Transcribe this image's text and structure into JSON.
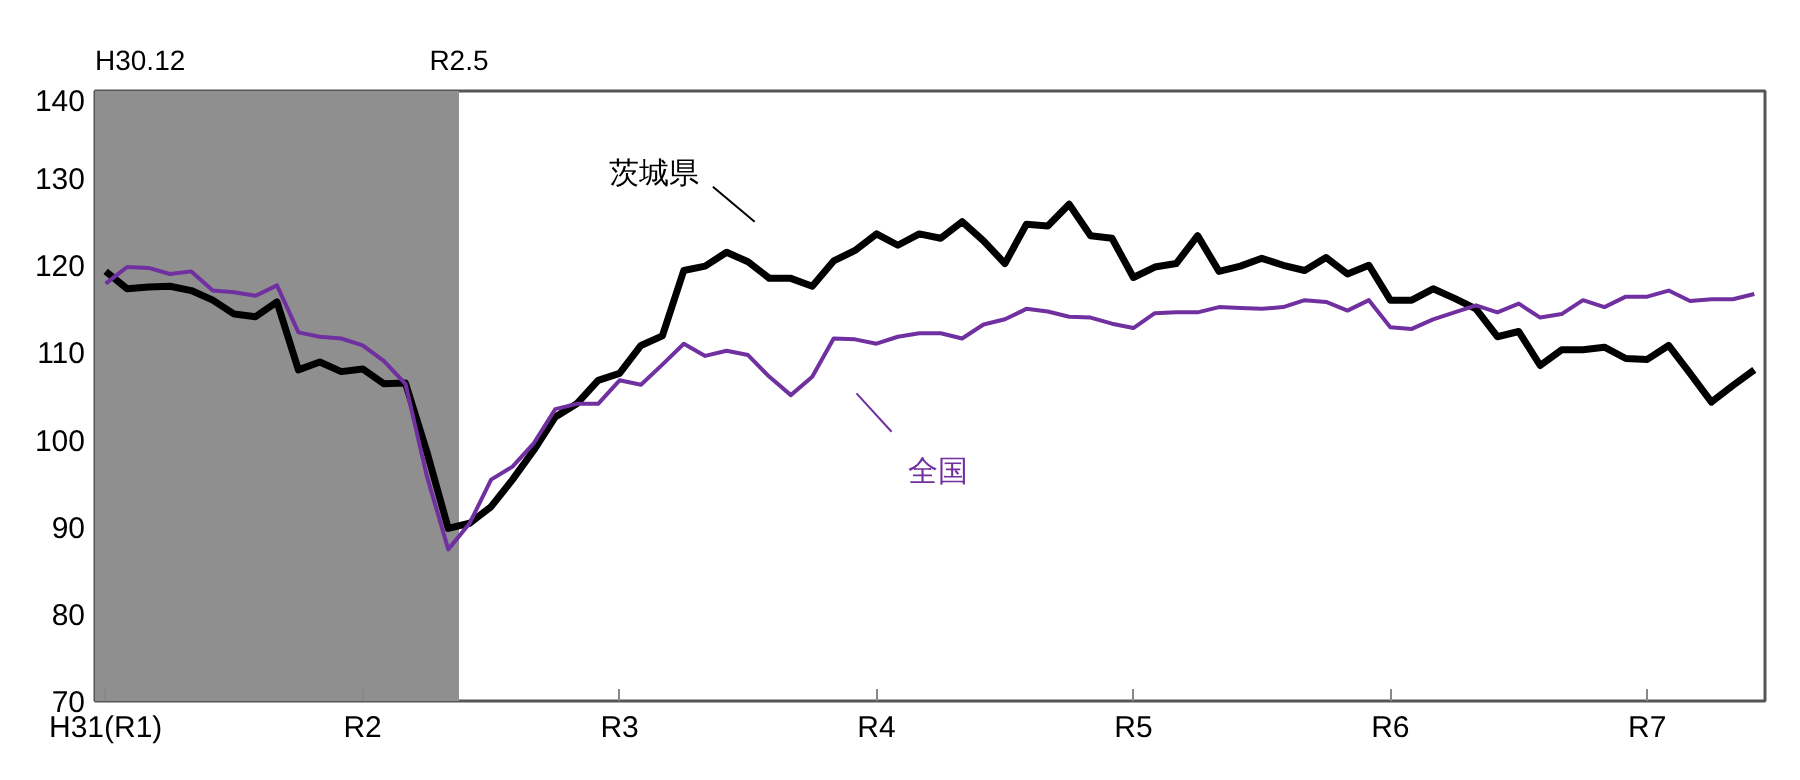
{
  "chart_data": {
    "type": "line",
    "categories": [
      "H31(R1)",
      null,
      null,
      null,
      null,
      null,
      null,
      null,
      null,
      null,
      null,
      null,
      "R2",
      null,
      null,
      null,
      null,
      null,
      null,
      null,
      null,
      null,
      null,
      null,
      "R3",
      null,
      null,
      null,
      null,
      null,
      null,
      null,
      null,
      null,
      null,
      null,
      "R4",
      null,
      null,
      null,
      null,
      null,
      null,
      null,
      null,
      null,
      null,
      null,
      "R5",
      null,
      null,
      null,
      null,
      null,
      null,
      null,
      null,
      null,
      null,
      null,
      "R6",
      null,
      null,
      null,
      null,
      null,
      null,
      null,
      null,
      null,
      null,
      null,
      "R7",
      null,
      null,
      null,
      null,
      null
    ],
    "series": [
      {
        "name": "茨城県",
        "color": "#000000",
        "values": [
          119.3,
          117.3,
          117.5,
          117.6,
          117.1,
          116.0,
          114.4,
          114.1,
          115.8,
          108.0,
          108.9,
          107.8,
          108.1,
          106.4,
          106.5,
          98.6,
          89.8,
          90.4,
          92.3,
          95.4,
          98.8,
          102.6,
          104.1,
          106.8,
          107.6,
          110.8,
          111.9,
          119.4,
          119.9,
          121.5,
          120.4,
          118.5,
          118.5,
          117.6,
          120.5,
          121.7,
          123.6,
          122.3,
          123.6,
          123.1,
          125.0,
          122.8,
          120.2,
          124.7,
          124.5,
          127.0,
          123.4,
          123.1,
          118.6,
          119.8,
          120.2,
          123.4,
          119.3,
          119.9,
          120.8,
          120.0,
          119.4,
          120.9,
          119.0,
          120.0,
          116.0,
          116.0,
          117.3,
          116.2,
          115.0,
          111.8,
          112.4,
          108.5,
          110.3,
          110.3,
          110.6,
          109.3,
          109.2,
          110.8,
          107.6,
          104.3,
          106.2,
          108.0
        ]
      },
      {
        "name": "全国",
        "color": "#7030a0",
        "values": [
          117.9,
          119.8,
          119.7,
          119.0,
          119.3,
          117.1,
          116.9,
          116.5,
          117.7,
          112.3,
          111.8,
          111.6,
          110.8,
          109.0,
          106.4,
          95.8,
          87.4,
          90.4,
          95.4,
          96.9,
          99.6,
          103.5,
          104.1,
          104.1,
          106.8,
          106.3,
          108.6,
          111.0,
          109.6,
          110.2,
          109.7,
          107.2,
          105.1,
          107.2,
          111.6,
          111.5,
          111.0,
          111.8,
          112.2,
          112.2,
          111.6,
          113.2,
          113.8,
          115.0,
          114.7,
          114.1,
          114.0,
          113.3,
          112.8,
          114.5,
          114.6,
          114.6,
          115.2,
          115.1,
          115.0,
          115.2,
          116.0,
          115.8,
          114.8,
          116.0,
          112.9,
          112.7,
          113.8,
          114.6,
          115.4,
          114.6,
          115.6,
          114.0,
          114.4,
          116.0,
          115.2,
          116.4,
          116.4,
          117.1,
          115.9,
          116.1,
          116.1,
          116.7
        ]
      }
    ],
    "ylim": [
      70,
      140
    ],
    "yticks": [
      70,
      80,
      90,
      100,
      110,
      120,
      130,
      140
    ],
    "annotations": [
      "H30.12",
      "R2.5"
    ],
    "grid": false,
    "legend": false,
    "marker": "none",
    "line_style": "solid"
  }
}
